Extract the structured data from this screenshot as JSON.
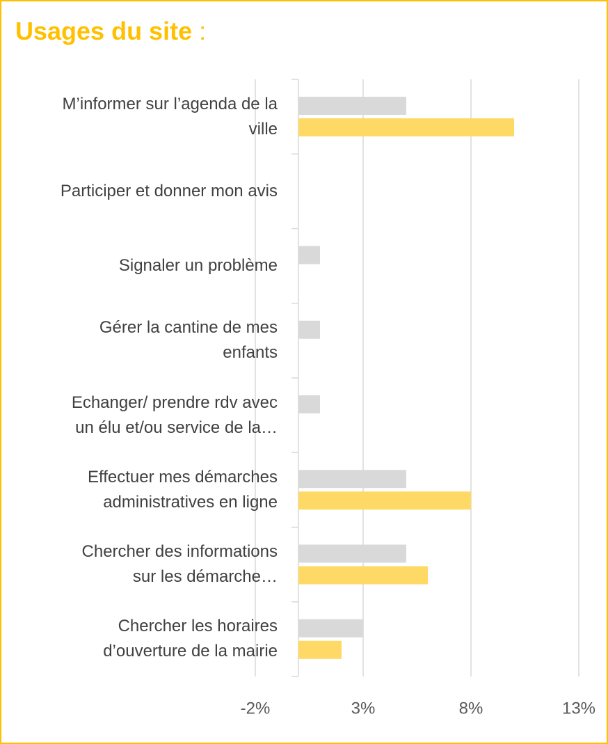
{
  "chart_data": {
    "type": "bar",
    "orientation": "horizontal",
    "title": "Usages du site",
    "title_suffix": ":",
    "categories": [
      "M’informer sur l’agenda de la\nville",
      "Participer et donner mon avis",
      "Signaler un problème",
      "Gérer la cantine de mes\nenfants",
      "Echanger/ prendre rdv avec\nun élu et/ou service de la…",
      "Effectuer mes démarches\nadministratives en ligne",
      "Chercher des informations\nsur les démarche…",
      "Chercher les horaires\nd’ouverture de la mairie"
    ],
    "series": [
      {
        "color": "#d9d9d9",
        "values": [
          5,
          0,
          1,
          1,
          1,
          5,
          5,
          3
        ]
      },
      {
        "color": "#ffd966",
        "values": [
          10,
          0,
          0,
          0,
          0,
          8,
          6,
          2
        ]
      }
    ],
    "xlim": [
      -2,
      13
    ],
    "xticks": [
      {
        "value": -2,
        "label": "-2%"
      },
      {
        "value": 3,
        "label": "3%"
      },
      {
        "value": 8,
        "label": "8%"
      },
      {
        "value": 13,
        "label": "13%"
      }
    ],
    "grid": true
  }
}
